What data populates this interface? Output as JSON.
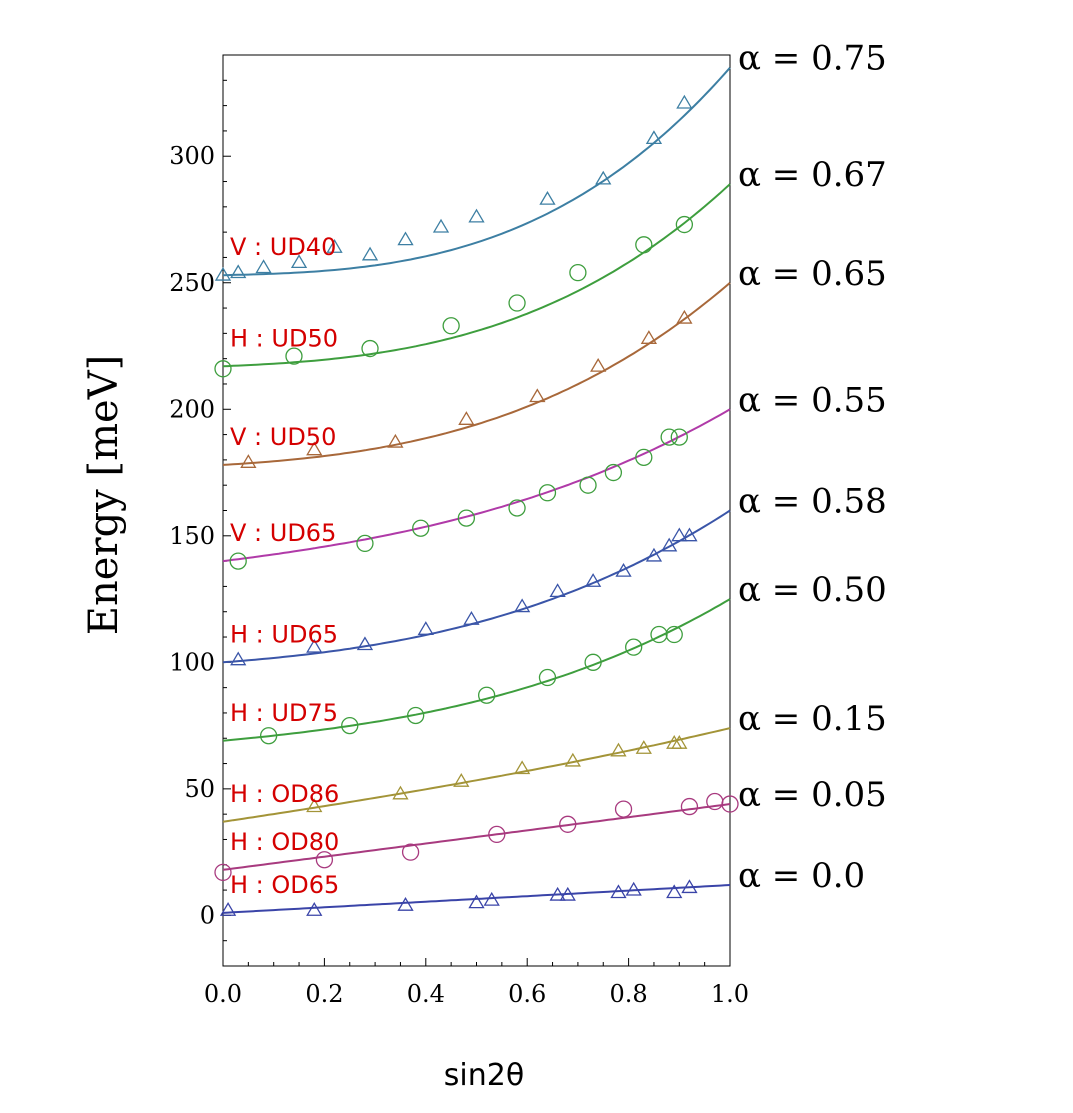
{
  "chart_data": {
    "type": "scatter",
    "title": "",
    "xlabel": "sin2θ",
    "ylabel": "Energy [meV]",
    "xlim": [
      0.0,
      1.0
    ],
    "ylim": [
      -20,
      340
    ],
    "xticks": [
      0.0,
      0.2,
      0.4,
      0.6,
      0.8,
      1.0
    ],
    "xtick_labels": [
      "0.0",
      "0.2",
      "0.4",
      "0.6",
      "0.8",
      "1.0"
    ],
    "yticks": [
      0,
      50,
      100,
      150,
      200,
      250,
      300
    ],
    "ytick_labels": [
      "0",
      "50",
      "100",
      "150",
      "200",
      "250",
      "300"
    ],
    "grid": false,
    "series": [
      {
        "name": "V : UD40",
        "alpha_label": "α = 0.75",
        "marker": "triangle",
        "color": "#3d7fa3",
        "fit": [
          253,
          4,
          9,
          69
        ],
        "points": [
          [
            0.0,
            253
          ],
          [
            0.03,
            254
          ],
          [
            0.08,
            256
          ],
          [
            0.15,
            258
          ],
          [
            0.22,
            264
          ],
          [
            0.29,
            261
          ],
          [
            0.36,
            267
          ],
          [
            0.43,
            272
          ],
          [
            0.5,
            276
          ],
          [
            0.64,
            283
          ],
          [
            0.75,
            291
          ],
          [
            0.85,
            307
          ],
          [
            0.91,
            321
          ]
        ]
      },
      {
        "name": "H : UD50",
        "alpha_label": "α = 0.67",
        "marker": "circle",
        "color": "#3e9e3e",
        "fit": [
          217,
          8,
          15,
          49
        ],
        "points": [
          [
            0.0,
            216
          ],
          [
            0.14,
            221
          ],
          [
            0.29,
            224
          ],
          [
            0.45,
            233
          ],
          [
            0.58,
            242
          ],
          [
            0.7,
            254
          ],
          [
            0.83,
            265
          ],
          [
            0.91,
            273
          ]
        ]
      },
      {
        "name": "V : UD50",
        "alpha_label": "α = 0.65",
        "marker": "triangle",
        "color": "#a8683a",
        "fit": [
          178,
          12,
          20,
          40
        ],
        "points": [
          [
            0.05,
            179
          ],
          [
            0.18,
            184
          ],
          [
            0.34,
            187
          ],
          [
            0.48,
            196
          ],
          [
            0.62,
            205
          ],
          [
            0.74,
            217
          ],
          [
            0.84,
            228
          ],
          [
            0.91,
            236
          ]
        ]
      },
      {
        "name": "V : UD65",
        "alpha_label": "α = 0.55",
        "marker": "circle",
        "color": "#3e9e3e",
        "line_color": "#b03aa8",
        "fit": [
          140,
          25,
          14,
          21
        ],
        "points": [
          [
            0.03,
            140
          ],
          [
            0.28,
            147
          ],
          [
            0.39,
            153
          ],
          [
            0.48,
            157
          ],
          [
            0.58,
            161
          ],
          [
            0.64,
            167
          ],
          [
            0.72,
            170
          ],
          [
            0.77,
            175
          ],
          [
            0.83,
            181
          ],
          [
            0.88,
            189
          ],
          [
            0.9,
            189
          ]
        ]
      },
      {
        "name": "H : UD65",
        "alpha_label": "α = 0.58",
        "marker": "triangle",
        "color": "#3a55a8",
        "fit": [
          100,
          15,
          20,
          25
        ],
        "points": [
          [
            0.03,
            101
          ],
          [
            0.18,
            106
          ],
          [
            0.28,
            107
          ],
          [
            0.4,
            113
          ],
          [
            0.49,
            117
          ],
          [
            0.59,
            122
          ],
          [
            0.66,
            128
          ],
          [
            0.73,
            132
          ],
          [
            0.79,
            136
          ],
          [
            0.85,
            142
          ],
          [
            0.88,
            146
          ],
          [
            0.9,
            150
          ],
          [
            0.92,
            150
          ]
        ]
      },
      {
        "name": "H : UD75",
        "alpha_label": "α = 0.50",
        "marker": "circle",
        "color": "#3e9e3e",
        "fit": [
          69,
          19,
          12,
          25
        ],
        "points": [
          [
            0.09,
            71
          ],
          [
            0.25,
            75
          ],
          [
            0.38,
            79
          ],
          [
            0.52,
            87
          ],
          [
            0.64,
            94
          ],
          [
            0.73,
            100
          ],
          [
            0.81,
            106
          ],
          [
            0.86,
            111
          ],
          [
            0.89,
            111
          ]
        ]
      },
      {
        "name": "H : OD86",
        "alpha_label": "α = 0.15",
        "marker": "triangle",
        "color": "#a39438",
        "fit": [
          37,
          30,
          4,
          3
        ],
        "points": [
          [
            0.18,
            43
          ],
          [
            0.35,
            48
          ],
          [
            0.47,
            53
          ],
          [
            0.59,
            58
          ],
          [
            0.69,
            61
          ],
          [
            0.78,
            65
          ],
          [
            0.83,
            66
          ],
          [
            0.89,
            68
          ],
          [
            0.9,
            68
          ]
        ]
      },
      {
        "name": "H : OD80",
        "alpha_label": "α = 0.05",
        "marker": "circle",
        "color": "#a83a7f",
        "fit": [
          18,
          26,
          0,
          0
        ],
        "points": [
          [
            0.0,
            17
          ],
          [
            0.2,
            22
          ],
          [
            0.37,
            25
          ],
          [
            0.54,
            32
          ],
          [
            0.68,
            36
          ],
          [
            0.79,
            42
          ],
          [
            0.92,
            43
          ],
          [
            0.97,
            45
          ],
          [
            1.0,
            44
          ]
        ]
      },
      {
        "name": "H : OD65",
        "alpha_label": "α = 0.0",
        "marker": "triangle",
        "color": "#3a44a8",
        "fit": [
          1,
          11,
          0,
          0
        ],
        "points": [
          [
            0.01,
            2
          ],
          [
            0.18,
            2
          ],
          [
            0.36,
            4
          ],
          [
            0.5,
            5
          ],
          [
            0.53,
            6
          ],
          [
            0.66,
            8
          ],
          [
            0.68,
            8
          ],
          [
            0.78,
            9
          ],
          [
            0.81,
            10
          ],
          [
            0.89,
            9
          ],
          [
            0.92,
            11
          ]
        ]
      }
    ]
  }
}
